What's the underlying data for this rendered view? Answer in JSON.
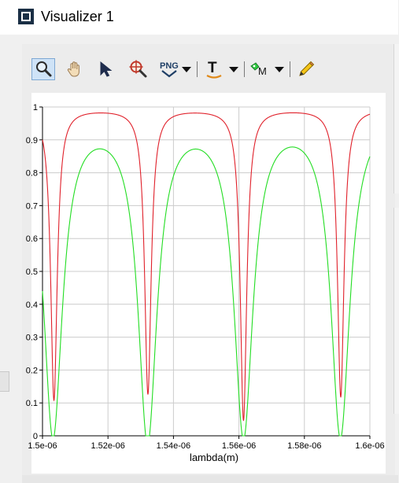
{
  "window": {
    "title": "Visualizer 1",
    "app_icon": "visualizer-window-icon"
  },
  "toolbar": {
    "tools": [
      {
        "name": "zoom",
        "icon": "magnifier-icon",
        "active": true
      },
      {
        "name": "pan",
        "icon": "hand-icon",
        "active": false
      },
      {
        "name": "select",
        "icon": "arrow-cursor-icon",
        "active": false
      },
      {
        "name": "zoom-extents",
        "icon": "zoom-target-icon",
        "active": false
      },
      {
        "name": "export",
        "icon": "png-icon",
        "label": "PNG",
        "dropdown": true
      },
      {
        "name": "text",
        "icon": "text-T-icon",
        "label": "T",
        "dropdown": true
      },
      {
        "name": "marker",
        "icon": "marker-M-icon",
        "label": "M",
        "dropdown": true
      },
      {
        "name": "draw",
        "icon": "pencil-icon",
        "active": false
      }
    ]
  },
  "colors": {
    "red_series": "#e0202a",
    "green_series": "#22dd22",
    "grid": "#cccccc",
    "active_tool_bg": "#cfe3f7"
  },
  "chart_data": {
    "type": "line",
    "xlabel": "lambda(m)",
    "ylabel": "",
    "xlim": [
      1.5e-06,
      1.6e-06
    ],
    "ylim": [
      0,
      1
    ],
    "grid": true,
    "legend": "none",
    "x_tick_labels": [
      "1.5e-06",
      "1.52e-06",
      "1.54e-06",
      "1.56e-06",
      "1.58e-06",
      "1.6e-06"
    ],
    "x_tick_values": [
      1.5e-06,
      1.52e-06,
      1.54e-06,
      1.56e-06,
      1.58e-06,
      1.6e-06
    ],
    "y_tick_labels": [
      "0",
      "0.1",
      "0.2",
      "0.3",
      "0.4",
      "0.5",
      "0.6",
      "0.7",
      "0.8",
      "0.9",
      "1"
    ],
    "y_tick_values": [
      0,
      0.1,
      0.2,
      0.3,
      0.4,
      0.5,
      0.6,
      0.7,
      0.8,
      0.9,
      1
    ],
    "series": [
      {
        "color": "#e0202a",
        "kind": "lorentzian-dips",
        "baseline": 0.995,
        "dip_centers": [
          1.5035e-06,
          1.5322e-06,
          1.5614e-06,
          1.5911e-06
        ],
        "dip_minima": [
          0.11,
          0.13,
          0.05,
          0.12
        ],
        "dip_halfwidth": 1.2e-09
      },
      {
        "color": "#22dd22",
        "kind": "lorentzian-dips",
        "baseline": 0.99,
        "dip_centers": [
          1.5032e-06,
          1.5321e-06,
          1.5614e-06,
          1.591e-06
        ],
        "dip_minima": [
          0.01,
          0.005,
          0.02,
          0.01
        ],
        "dip_halfwidth": 3.5e-09
      }
    ]
  }
}
